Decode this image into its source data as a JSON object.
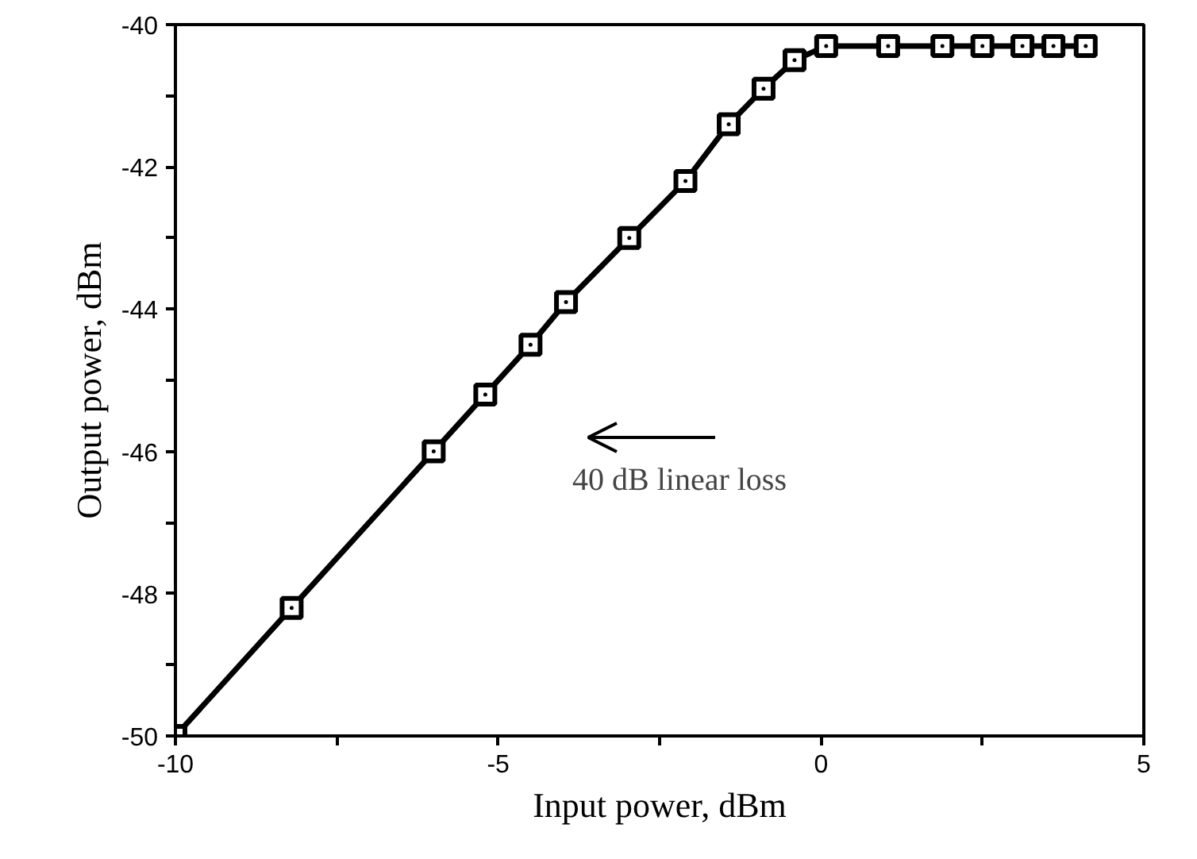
{
  "chart_data": {
    "type": "line",
    "xlabel": "Input power, dBm",
    "ylabel": "Output power, dBm",
    "x": [
      -10,
      -8.2,
      -6,
      -5.2,
      -4.5,
      -3.95,
      -2.97,
      -2.1,
      -1.43,
      -0.89,
      -0.41,
      0.08,
      1.04,
      1.88,
      2.5,
      3.12,
      3.6,
      4.1
    ],
    "series": [
      {
        "color": "#000000",
        "values": [
          -50,
          -48.2,
          -46,
          -45.2,
          -44.5,
          -43.9,
          -43,
          -42.2,
          -41.4,
          -40.9,
          -40.5,
          -40.3,
          -40.3,
          -40.3,
          -40.3,
          -40.3,
          -40.3,
          -40.3
        ]
      }
    ],
    "xlim": [
      -10,
      5
    ],
    "ylim": [
      -50,
      -40
    ],
    "xticks": [
      -10,
      {
        "value": -7.5,
        "label": null
      },
      -5,
      {
        "value": -2.5,
        "label": null
      },
      0,
      {
        "value": 2.5,
        "label": null
      },
      5
    ],
    "yticks": [
      -50,
      {
        "value": -49,
        "label": null
      },
      -48,
      {
        "value": -47,
        "label": null
      },
      -46,
      {
        "value": -45,
        "label": null
      },
      -44,
      {
        "value": -43,
        "label": null
      },
      -42,
      {
        "value": -41,
        "label": null
      },
      -40
    ],
    "annotations": [
      "40 dB linear loss"
    ],
    "marker": "square",
    "line_style": "solid",
    "grid": false
  }
}
